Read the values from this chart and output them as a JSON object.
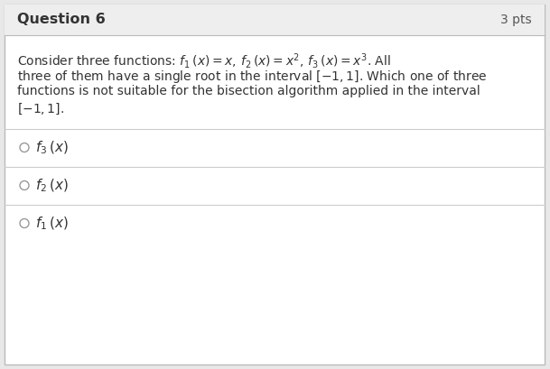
{
  "title": "Question 6",
  "pts": "3 pts",
  "header_bg": "#eeeeee",
  "body_bg": "#ffffff",
  "border_color": "#bbbbbb",
  "title_color": "#333333",
  "pts_color": "#555555",
  "text_color": "#333333",
  "option_circle_color": "#999999",
  "separator_color": "#cccccc",
  "line1": "Consider three functions: $f_1\\,(x) = x,\\, f_2\\,(x) = x^2,\\, f_3\\,(x) = x^3$. All",
  "line2": "three of them have a single root in the interval $[-1, 1]$. Which one of three",
  "line3": "functions is not suitable for the bisection algorithm applied in the interval",
  "line4": "$[-1, 1]$.",
  "option1": "$f_3\\,(x)$",
  "option2": "$f_2\\,(x)$",
  "option3": "$f_1\\,(x)$",
  "font_size_title": 11.5,
  "font_size_pts": 10,
  "font_size_body": 10,
  "font_size_option": 11
}
